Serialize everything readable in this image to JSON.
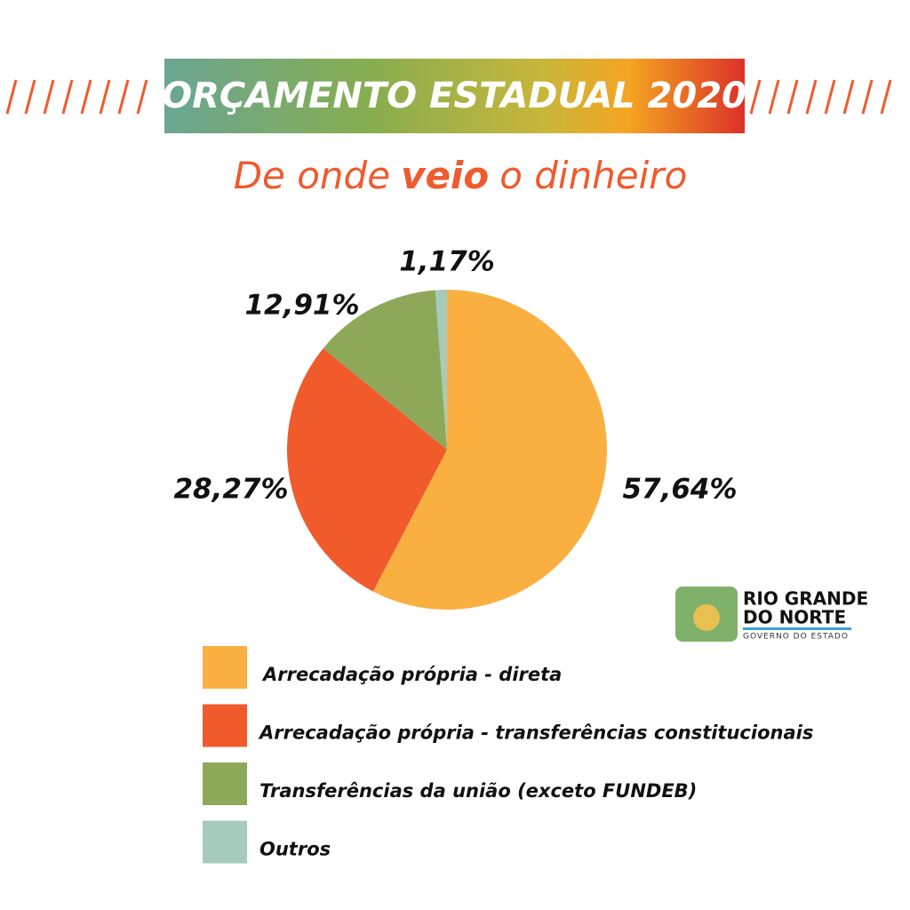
{
  "chart_data": {
    "type": "pie",
    "title": "ORÇAMENTO ESTADUAL 2020",
    "subtitle_parts": [
      "De onde",
      "veio",
      "o dinheiro"
    ],
    "categories": [
      "Arrecadação própria - direta",
      "Arrecadação própria - transferências constitucionais",
      "Transferências da união (exceto FUNDEB)",
      "Outros"
    ],
    "values": [
      57.64,
      28.27,
      12.91,
      1.17
    ],
    "value_labels": [
      "57,64%",
      "28,27%",
      "12,91%",
      "1,17%"
    ],
    "colors": [
      "#f9b041",
      "#f15a2b",
      "#8ea85a",
      "#a6cbbb"
    ]
  },
  "logo": {
    "lines": [
      "RIO GRANDE",
      "DO NORTE",
      "GOVERNO DO ESTADO"
    ]
  }
}
